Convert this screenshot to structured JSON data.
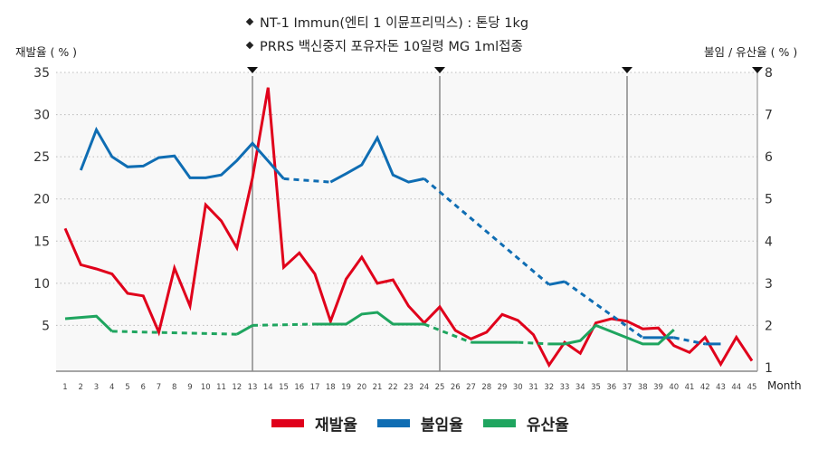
{
  "notes": [
    "NT-1  Immun(엔티 1 이뮨프리믹스) : 톤당 1kg",
    "PRRS 백신중지 포유자돈 10일령 MG 1ml접종"
  ],
  "chart_data": {
    "type": "line",
    "title": "",
    "xlabel": "Month",
    "ylabel_left": "재발율 ( % )",
    "ylabel_right": "불임 / 유산율 ( % )",
    "x_ticks": [
      1,
      2,
      3,
      4,
      5,
      6,
      7,
      8,
      9,
      10,
      11,
      12,
      13,
      14,
      15,
      16,
      17,
      18,
      19,
      20,
      21,
      22,
      23,
      24,
      25,
      26,
      27,
      28,
      29,
      30,
      31,
      32,
      33,
      34,
      35,
      36,
      37,
      38,
      39,
      40,
      41,
      42,
      43,
      44,
      45
    ],
    "xlim": [
      1,
      45
    ],
    "ylim_left": [
      0,
      35
    ],
    "ylim_right": [
      1,
      8
    ],
    "y_ticks_left": [
      5,
      10,
      15,
      20,
      25,
      30,
      35
    ],
    "y_ticks_right": [
      1,
      2,
      3,
      4,
      5,
      6,
      7,
      8
    ],
    "grid": "horizontal dotted",
    "markers_at_month": [
      13,
      25,
      37,
      45
    ],
    "legend_position": "bottom-center",
    "series": [
      {
        "name": "재발율",
        "axis": "left",
        "color": "#e0001b",
        "segments": [
          {
            "style": "solid",
            "points": [
              [
                1,
                16.5
              ],
              [
                2,
                12.2
              ],
              [
                3,
                11.7
              ],
              [
                4,
                11.1
              ],
              [
                5,
                8.8
              ],
              [
                6,
                8.5
              ],
              [
                7,
                4.2
              ],
              [
                8,
                11.8
              ],
              [
                9,
                7.3
              ],
              [
                10,
                19.3
              ],
              [
                11,
                17.4
              ],
              [
                12,
                14.2
              ],
              [
                13,
                22.5
              ],
              [
                14,
                33.2
              ],
              [
                15,
                11.9
              ],
              [
                16,
                13.6
              ],
              [
                17,
                11.1
              ],
              [
                18,
                5.5
              ],
              [
                19,
                10.5
              ],
              [
                20,
                13.1
              ],
              [
                21,
                10.0
              ],
              [
                22,
                10.4
              ],
              [
                23,
                7.3
              ],
              [
                24,
                5.3
              ],
              [
                25,
                7.2
              ],
              [
                26,
                4.4
              ],
              [
                27,
                3.4
              ],
              [
                28,
                4.2
              ],
              [
                29,
                6.3
              ],
              [
                30,
                5.6
              ],
              [
                31,
                3.9
              ],
              [
                32,
                0.3
              ],
              [
                33,
                3.0
              ],
              [
                34,
                1.7
              ],
              [
                35,
                5.3
              ],
              [
                36,
                5.8
              ],
              [
                37,
                5.5
              ],
              [
                38,
                4.6
              ],
              [
                39,
                4.7
              ],
              [
                40,
                2.6
              ],
              [
                41,
                1.8
              ],
              [
                42,
                3.6
              ],
              [
                43,
                0.4
              ],
              [
                44,
                3.6
              ],
              [
                45,
                0.8
              ]
            ]
          }
        ]
      },
      {
        "name": "불임율",
        "axis": "right",
        "color": "#0f6db3",
        "segments": [
          {
            "style": "solid",
            "points": [
              [
                2,
                5.68
              ],
              [
                3,
                6.64
              ],
              [
                4,
                6.0
              ],
              [
                5,
                5.76
              ],
              [
                6,
                5.78
              ],
              [
                7,
                5.98
              ],
              [
                8,
                6.02
              ],
              [
                9,
                5.5
              ],
              [
                10,
                5.5
              ],
              [
                11,
                5.57
              ],
              [
                12,
                5.91
              ],
              [
                13,
                6.32
              ],
              [
                14,
                5.9
              ],
              [
                15,
                5.48
              ]
            ]
          },
          {
            "style": "dashed",
            "points": [
              [
                15,
                5.48
              ],
              [
                18,
                5.4
              ]
            ]
          },
          {
            "style": "solid",
            "points": [
              [
                18,
                5.4
              ],
              [
                19,
                5.6
              ],
              [
                20,
                5.81
              ],
              [
                21,
                6.45
              ],
              [
                22,
                5.57
              ],
              [
                23,
                5.4
              ],
              [
                24,
                5.48
              ]
            ]
          },
          {
            "style": "dashed",
            "points": [
              [
                24,
                5.48
              ],
              [
                32,
                2.97
              ]
            ]
          },
          {
            "style": "solid",
            "points": [
              [
                32,
                2.97
              ],
              [
                33,
                3.04
              ]
            ]
          },
          {
            "style": "dashed",
            "points": [
              [
                33,
                3.04
              ],
              [
                38,
                1.71
              ]
            ]
          },
          {
            "style": "solid",
            "points": [
              [
                38,
                1.71
              ],
              [
                40,
                1.71
              ]
            ]
          },
          {
            "style": "dashed",
            "points": [
              [
                40,
                1.71
              ],
              [
                42,
                1.56
              ]
            ]
          },
          {
            "style": "solid",
            "points": [
              [
                42,
                1.56
              ],
              [
                43,
                1.56
              ]
            ]
          }
        ]
      },
      {
        "name": "유산율",
        "axis": "right",
        "color": "#1fa55f",
        "segments": [
          {
            "style": "solid",
            "points": [
              [
                1,
                2.16
              ],
              [
                3,
                2.22
              ],
              [
                4,
                1.86
              ]
            ]
          },
          {
            "style": "dashed",
            "points": [
              [
                4,
                1.86
              ],
              [
                12,
                1.79
              ]
            ]
          },
          {
            "style": "solid",
            "points": [
              [
                12,
                1.79
              ],
              [
                13,
                2.0
              ]
            ]
          },
          {
            "style": "dashed",
            "points": [
              [
                13,
                2.0
              ],
              [
                17,
                2.03
              ]
            ]
          },
          {
            "style": "solid",
            "points": [
              [
                17,
                2.03
              ],
              [
                19,
                2.03
              ],
              [
                20,
                2.27
              ],
              [
                21,
                2.31
              ],
              [
                22,
                2.03
              ],
              [
                24,
                2.03
              ]
            ]
          },
          {
            "style": "dashed",
            "points": [
              [
                24,
                2.03
              ],
              [
                27,
                1.6
              ]
            ]
          },
          {
            "style": "solid",
            "points": [
              [
                27,
                1.6
              ],
              [
                30,
                1.6
              ]
            ]
          },
          {
            "style": "dashed",
            "points": [
              [
                30,
                1.6
              ],
              [
                32,
                1.56
              ]
            ]
          },
          {
            "style": "solid",
            "points": [
              [
                32,
                1.56
              ],
              [
                33,
                1.56
              ],
              [
                34,
                1.64
              ],
              [
                35,
                2.0
              ],
              [
                38,
                1.56
              ],
              [
                39,
                1.56
              ],
              [
                40,
                1.9
              ]
            ]
          }
        ]
      }
    ]
  },
  "legend": [
    {
      "label": "재발율",
      "color": "#e0001b"
    },
    {
      "label": "불임율",
      "color": "#0f6db3"
    },
    {
      "label": "유산율",
      "color": "#1fa55f"
    }
  ]
}
